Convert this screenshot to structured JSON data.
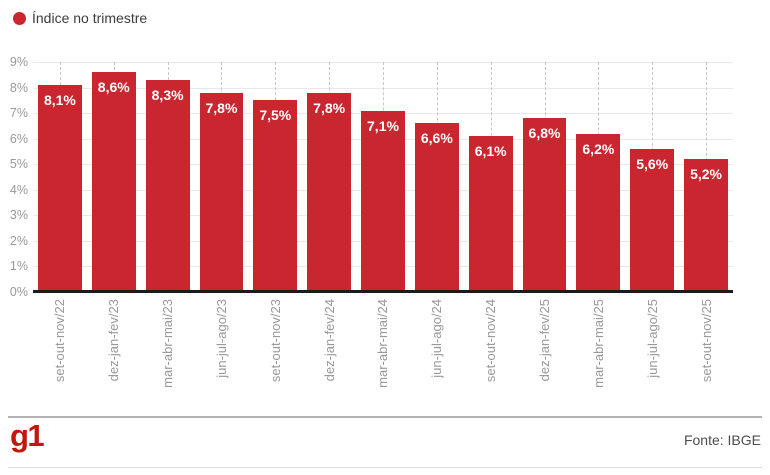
{
  "legend": {
    "label": "Índice no trimestre"
  },
  "chart_data": {
    "type": "bar",
    "title": "",
    "series_name": "Índice no trimestre",
    "categories": [
      "set-out-nov/22",
      "dez-jan-fev/23",
      "mar-abr-mai/23",
      "jun-jul-ago/23",
      "set-out-nov/23",
      "dez-jan-fev/24",
      "mar-abr-mai/24",
      "jun-jul-ago/24",
      "set-out-nov/24",
      "dez-jan-fev/25",
      "mar-abr-mai/25",
      "jun-jul-ago/25",
      "set-out-nov/25"
    ],
    "values": [
      8.1,
      8.6,
      8.3,
      7.8,
      7.5,
      7.8,
      7.1,
      6.6,
      6.1,
      6.8,
      6.2,
      5.6,
      5.2
    ],
    "value_labels": [
      "8,1%",
      "8,6%",
      "8,3%",
      "7,8%",
      "7,5%",
      "7,8%",
      "7,1%",
      "6,6%",
      "6,1%",
      "6,8%",
      "6,2%",
      "5,6%",
      "5,2%"
    ],
    "xlabel": "",
    "ylabel": "",
    "ylim": [
      0,
      9
    ],
    "y_ticks": [
      "0%",
      "1%",
      "2%",
      "3%",
      "4%",
      "5%",
      "6%",
      "7%",
      "8%",
      "9%"
    ],
    "grid": true,
    "legend_position": "top-left"
  },
  "footer": {
    "logo": "g1",
    "source": "Fonte: IBGE"
  },
  "colors": {
    "bar": "#ca2630",
    "legend_dot": "#ca2630",
    "logo": "#c4170c",
    "axis_line": "#1b1b1b",
    "grid_horizontal": "#e9e9e9",
    "grid_vertical_dashed": "#c6c6c6",
    "tick_text": "#999999",
    "bar_label_text": "#ffffff",
    "legend_text": "#3d3d3d",
    "source_text": "#4d4d4d",
    "divider": "#b3b3b3",
    "bottom_rule": "#dcdcdc"
  }
}
